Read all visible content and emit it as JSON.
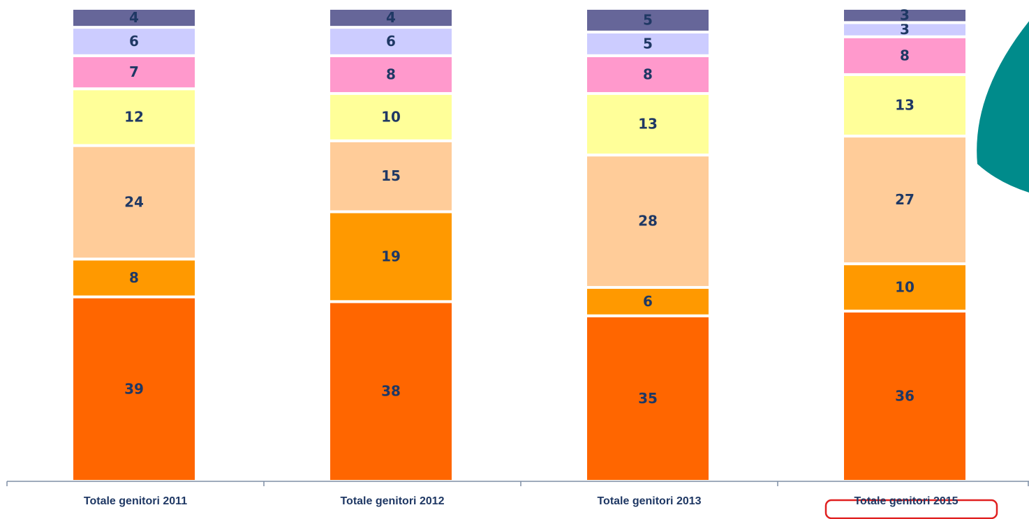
{
  "chart_data": {
    "type": "stacked_bar",
    "categories": [
      "Totale genitori 2011",
      "Totale genitori 2012",
      "Totale genitori 2013",
      "Totale genitori 2015"
    ],
    "series": [
      {
        "color": "#ff6600",
        "values": [
          39,
          38,
          35,
          36
        ]
      },
      {
        "color": "#ff9900",
        "values": [
          8,
          19,
          6,
          10
        ]
      },
      {
        "color": "#ffcc99",
        "values": [
          24,
          15,
          28,
          27
        ]
      },
      {
        "color": "#ffff99",
        "values": [
          12,
          10,
          13,
          13
        ]
      },
      {
        "color": "#ff99cc",
        "values": [
          7,
          8,
          8,
          8
        ]
      },
      {
        "color": "#ccccff",
        "values": [
          6,
          6,
          5,
          3
        ]
      },
      {
        "color": "#666699",
        "values": [
          4,
          4,
          5,
          3
        ]
      }
    ],
    "ylim": [
      0,
      100
    ]
  }
}
